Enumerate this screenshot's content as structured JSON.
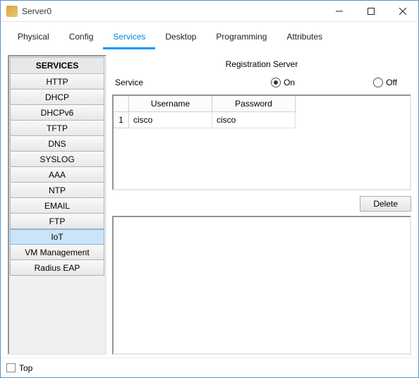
{
  "window": {
    "title": "Server0"
  },
  "tabs": {
    "items": [
      {
        "label": "Physical",
        "active": false
      },
      {
        "label": "Config",
        "active": false
      },
      {
        "label": "Services",
        "active": true
      },
      {
        "label": "Desktop",
        "active": false
      },
      {
        "label": "Programming",
        "active": false
      },
      {
        "label": "Attributes",
        "active": false
      }
    ]
  },
  "sidebar": {
    "header": "SERVICES",
    "items": [
      {
        "label": "HTTP",
        "selected": false
      },
      {
        "label": "DHCP",
        "selected": false
      },
      {
        "label": "DHCPv6",
        "selected": false
      },
      {
        "label": "TFTP",
        "selected": false
      },
      {
        "label": "DNS",
        "selected": false
      },
      {
        "label": "SYSLOG",
        "selected": false
      },
      {
        "label": "AAA",
        "selected": false
      },
      {
        "label": "NTP",
        "selected": false
      },
      {
        "label": "EMAIL",
        "selected": false
      },
      {
        "label": "FTP",
        "selected": false
      },
      {
        "label": "IoT",
        "selected": true
      },
      {
        "label": "VM Management",
        "selected": false
      },
      {
        "label": "Radius EAP",
        "selected": false
      }
    ]
  },
  "main": {
    "title": "Registration Server",
    "service_label": "Service",
    "on_label": "On",
    "off_label": "Off",
    "service_state": "on",
    "table": {
      "columns": [
        "Username",
        "Password"
      ],
      "rows": [
        {
          "n": "1",
          "cells": [
            "cisco",
            "cisco"
          ]
        }
      ]
    },
    "delete_label": "Delete"
  },
  "footer": {
    "top_label": "Top",
    "top_checked": false
  },
  "colors": {
    "accent": "#0099ff",
    "accent_text": "#0088e0",
    "selected_bg": "#cce4f7",
    "selected_border": "#7eb4ea",
    "window_border": "#5a8fcf"
  }
}
